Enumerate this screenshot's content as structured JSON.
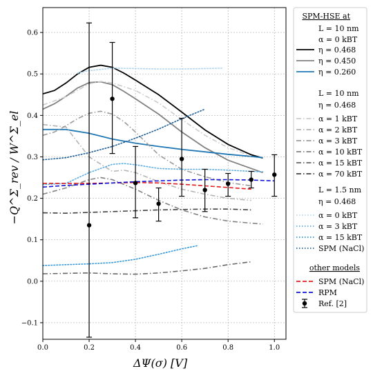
{
  "chart_data": {
    "type": "line",
    "xlabel": "ΔΨ(σ) [V]",
    "ylabel": "−Q^Σ_rev / W^Σ_el",
    "xlim": [
      0.0,
      1.05
    ],
    "ylim": [
      -0.14,
      0.66
    ],
    "grid": true,
    "legend_placement": "outside-right",
    "x_ticks": [
      "0.0",
      "0.2",
      "0.4",
      "0.6",
      "0.8",
      "1.0"
    ],
    "y_ticks": [
      "−0.1",
      "0.0",
      "0.1",
      "0.2",
      "0.3",
      "0.4",
      "0.5",
      "0.6"
    ],
    "legend": {
      "group1_title": "SPM-HSE at",
      "group1_params": [
        "L = 10 nm",
        "α = 0 kBT"
      ],
      "group2_params": [
        "L = 10 nm",
        "η = 0.468"
      ],
      "group3_params": [
        "L = 1.5 nm",
        "η = 0.468"
      ],
      "group4_title": "other models"
    },
    "series": [
      {
        "name": "η = 0.468",
        "group": "g1",
        "color": "#000000",
        "dash": "solid",
        "x": [
          0.0,
          0.05,
          0.1,
          0.15,
          0.2,
          0.25,
          0.3,
          0.35,
          0.4,
          0.5,
          0.6,
          0.7,
          0.8,
          0.9,
          0.95
        ],
        "y": [
          0.452,
          0.46,
          0.478,
          0.5,
          0.516,
          0.521,
          0.516,
          0.502,
          0.485,
          0.45,
          0.408,
          0.365,
          0.33,
          0.305,
          0.297
        ]
      },
      {
        "name": "η = 0.450",
        "group": "g1",
        "color": "#808080",
        "dash": "solid",
        "x": [
          0.0,
          0.05,
          0.1,
          0.15,
          0.2,
          0.25,
          0.3,
          0.35,
          0.4,
          0.5,
          0.6,
          0.7,
          0.8,
          0.9,
          0.95
        ],
        "y": [
          0.415,
          0.428,
          0.446,
          0.466,
          0.479,
          0.481,
          0.474,
          0.458,
          0.44,
          0.403,
          0.36,
          0.322,
          0.292,
          0.272,
          0.262
        ]
      },
      {
        "name": "η = 0.260",
        "group": "g1",
        "color": "#1f77b4",
        "dash": "solid",
        "x": [
          0.0,
          0.1,
          0.2,
          0.3,
          0.4,
          0.5,
          0.6,
          0.7,
          0.8,
          0.9,
          0.95
        ],
        "y": [
          0.366,
          0.366,
          0.357,
          0.343,
          0.333,
          0.325,
          0.318,
          0.312,
          0.306,
          0.301,
          0.298
        ]
      },
      {
        "name": "α = 1 kBT",
        "group": "g2",
        "color": "#cccccc",
        "dash": "dashdot",
        "x": [
          0.0,
          0.1,
          0.2,
          0.25,
          0.3,
          0.4,
          0.5,
          0.6,
          0.7,
          0.8,
          0.9
        ],
        "y": [
          0.425,
          0.445,
          0.476,
          0.482,
          0.478,
          0.46,
          0.43,
          0.39,
          0.352,
          0.322,
          0.302
        ]
      },
      {
        "name": "α = 2 kBT",
        "group": "g2",
        "color": "#b3b3b3",
        "dash": "dashdot",
        "x": [
          0.0,
          0.1,
          0.2,
          0.3,
          0.35,
          0.4,
          0.5,
          0.6,
          0.7,
          0.8,
          0.9
        ],
        "y": [
          0.378,
          0.372,
          0.3,
          0.265,
          0.268,
          0.262,
          0.24,
          0.222,
          0.21,
          0.2,
          0.195
        ]
      },
      {
        "name": "α = 3 kBT",
        "group": "g2",
        "color": "#999999",
        "dash": "dashdot",
        "x": [
          0.0,
          0.05,
          0.1,
          0.15,
          0.2,
          0.25,
          0.3,
          0.35,
          0.4,
          0.5,
          0.6,
          0.7,
          0.8,
          0.9
        ],
        "y": [
          0.352,
          0.36,
          0.375,
          0.392,
          0.405,
          0.41,
          0.403,
          0.385,
          0.36,
          0.305,
          0.27,
          0.252,
          0.238,
          0.23
        ]
      },
      {
        "name": "α = 10 kBT",
        "group": "g2",
        "color": "#808080",
        "dash": "dashdot",
        "x": [
          0.0,
          0.1,
          0.2,
          0.25,
          0.3,
          0.4,
          0.5,
          0.6,
          0.7,
          0.8,
          0.9,
          0.95
        ],
        "y": [
          0.21,
          0.225,
          0.245,
          0.25,
          0.245,
          0.222,
          0.195,
          0.172,
          0.155,
          0.145,
          0.14,
          0.138
        ]
      },
      {
        "name": "α = 15 kBT",
        "group": "g2",
        "color": "#666666",
        "dash": "dashdot",
        "x": [
          0.0,
          0.1,
          0.2,
          0.3,
          0.4,
          0.5,
          0.6,
          0.7,
          0.8,
          0.9
        ],
        "y": [
          0.018,
          0.019,
          0.02,
          0.018,
          0.017,
          0.02,
          0.025,
          0.031,
          0.04,
          0.047
        ]
      },
      {
        "name": "α = 70 kBT",
        "group": "g2",
        "color": "#404040",
        "dash": "dashdot",
        "x": [
          0.0,
          0.1,
          0.2,
          0.3,
          0.4,
          0.5,
          0.6,
          0.7,
          0.8,
          0.9
        ],
        "y": [
          0.165,
          0.164,
          0.166,
          0.168,
          0.17,
          0.172,
          0.173,
          0.174,
          0.174,
          0.172
        ]
      },
      {
        "name": "α = 0 kBT",
        "group": "g3",
        "color": "#aed6f1",
        "dash": "dotted",
        "x": [
          0.15,
          0.2,
          0.3,
          0.4,
          0.5,
          0.6,
          0.7,
          0.78
        ],
        "y": [
          0.502,
          0.508,
          0.514,
          0.513,
          0.512,
          0.512,
          0.513,
          0.514
        ]
      },
      {
        "name": "α = 3 kBT",
        "group": "g3",
        "color": "#5dade2",
        "dash": "dotted",
        "x": [
          0.0,
          0.1,
          0.2,
          0.3,
          0.35,
          0.4,
          0.5,
          0.6,
          0.7,
          0.8,
          0.9,
          0.95
        ],
        "y": [
          0.233,
          0.236,
          0.262,
          0.282,
          0.284,
          0.281,
          0.272,
          0.27,
          0.27,
          0.268,
          0.265,
          0.264
        ]
      },
      {
        "name": "α = 15 kBT",
        "group": "g3",
        "color": "#3498db",
        "dash": "dotted",
        "x": [
          0.0,
          0.1,
          0.2,
          0.3,
          0.4,
          0.5,
          0.6,
          0.67
        ],
        "y": [
          0.038,
          0.04,
          0.042,
          0.045,
          0.053,
          0.065,
          0.078,
          0.086
        ]
      },
      {
        "name": "SPM (NaCl)",
        "group": "g3",
        "color": "#1f5f99",
        "dash": "dotted",
        "x": [
          0.0,
          0.1,
          0.2,
          0.3,
          0.4,
          0.5,
          0.6,
          0.7
        ],
        "y": [
          0.293,
          0.298,
          0.31,
          0.325,
          0.345,
          0.367,
          0.392,
          0.415
        ]
      },
      {
        "name": "SPM (NaCl)",
        "group": "g4",
        "color": "#e41a1c",
        "dash": "dashed",
        "x": [
          0.0,
          0.1,
          0.2,
          0.3,
          0.4,
          0.5,
          0.6,
          0.7,
          0.8,
          0.9
        ],
        "y": [
          0.236,
          0.236,
          0.236,
          0.237,
          0.238,
          0.237,
          0.234,
          0.23,
          0.226,
          0.222
        ]
      },
      {
        "name": "RPM",
        "group": "g4",
        "color": "#0a10d6",
        "dash": "dashed",
        "x": [
          0.0,
          0.1,
          0.2,
          0.3,
          0.4,
          0.5,
          0.6,
          0.7,
          0.8,
          0.9,
          1.0
        ],
        "y": [
          0.227,
          0.231,
          0.234,
          0.237,
          0.24,
          0.242,
          0.244,
          0.245,
          0.245,
          0.244,
          0.242
        ]
      }
    ],
    "points": {
      "name": "Ref. [2]",
      "color": "#000000",
      "x": [
        0.2,
        0.3,
        0.4,
        0.5,
        0.6,
        0.7,
        0.8,
        0.9,
        1.0
      ],
      "y": [
        0.135,
        0.44,
        0.237,
        0.187,
        0.295,
        0.22,
        0.235,
        0.245,
        0.257
      ],
      "err_low": [
        -0.135,
        0.308,
        0.153,
        0.145,
        0.205,
        0.168,
        0.205,
        0.225,
        0.205
      ],
      "err_high": [
        0.623,
        0.576,
        0.325,
        0.225,
        0.393,
        0.27,
        0.26,
        0.265,
        0.305
      ]
    }
  }
}
